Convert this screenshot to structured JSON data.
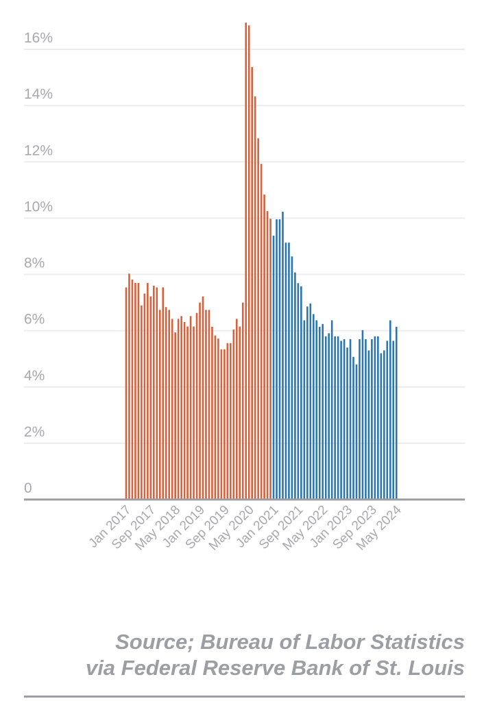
{
  "chart_data": {
    "type": "bar",
    "title": "",
    "xlabel": "",
    "ylabel": "",
    "ylim": [
      0,
      16.8
    ],
    "y_ticks": [
      "0",
      "2%",
      "4%",
      "6%",
      "8%",
      "10%",
      "12%",
      "14%",
      "16%"
    ],
    "x_ticks": [
      "Jan 2017",
      "Sep 2017",
      "May 2018",
      "Jan 2019",
      "Sep 2019",
      "May 2020",
      "Jan 2021",
      "Sep 2021",
      "May 2022",
      "Jan 2023",
      "Sep 2023",
      "May 2024"
    ],
    "grid": true,
    "x_start": "Jan 2017",
    "x_end": "May 2024",
    "series": [
      {
        "color": "#d9603b",
        "start": "Jan 2017",
        "values": [
          7.54,
          8.03,
          7.82,
          7.7,
          7.7,
          6.9,
          7.32,
          7.7,
          7.22,
          7.6,
          7.54,
          6.74,
          7.54,
          6.84,
          6.74,
          6.42,
          5.94,
          6.42,
          6.52,
          6.31,
          6.15,
          6.52,
          6.15,
          6.63,
          7.0,
          7.22,
          6.74,
          6.74,
          6.14,
          5.83,
          5.72,
          5.34,
          5.34,
          5.56,
          5.56,
          6.04,
          6.42,
          6.15,
          7.0,
          16.95,
          16.85,
          15.37,
          14.33,
          12.84,
          11.93,
          10.84,
          10.25,
          9.98
        ]
      },
      {
        "color": "#2a75b3",
        "start": "Jan 2021",
        "values": [
          9.38,
          9.96,
          9.96,
          10.23,
          9.13,
          9.13,
          8.64,
          8.07,
          7.69,
          7.58,
          6.37,
          6.86,
          6.97,
          6.59,
          6.37,
          6.14,
          6.24,
          5.8,
          5.91,
          6.37,
          5.8,
          5.8,
          5.64,
          5.7,
          5.4,
          5.7,
          5.07,
          4.8,
          5.7,
          6.02,
          5.7,
          5.3,
          5.7,
          5.8,
          5.8,
          5.2,
          5.3,
          5.64,
          6.37,
          5.64,
          6.14
        ]
      }
    ]
  },
  "source": {
    "line1": "Source; Bureau of Labor Statistics",
    "line2": "via Federal Reserve Bank of St. Louis"
  }
}
